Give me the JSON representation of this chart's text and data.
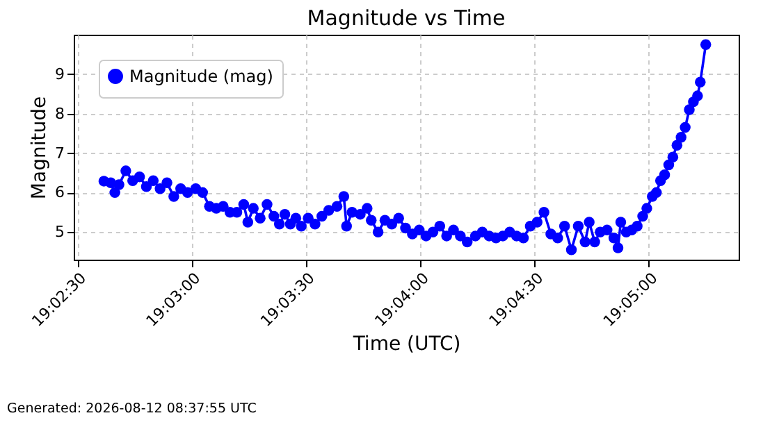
{
  "chart_data": {
    "type": "line",
    "title": "Magnitude vs Time",
    "xlabel": "Time (UTC)",
    "ylabel": "Magnitude",
    "annotations": [
      "Generated: 2026-08-12 08:37:55 UTC"
    ],
    "x": [
      19.0436,
      19.0441,
      19.0444,
      19.0447,
      19.0452,
      19.0457,
      19.0462,
      19.0467,
      19.0472,
      19.0477,
      19.0482,
      19.0487,
      19.0492,
      19.0497,
      19.0503,
      19.0508,
      19.0513,
      19.0518,
      19.0523,
      19.0528,
      19.0533,
      19.0538,
      19.0541,
      19.0545,
      19.055,
      19.0555,
      19.056,
      19.0564,
      19.0568,
      19.0572,
      19.0576,
      19.058,
      19.0585,
      19.059,
      19.0595,
      19.06,
      19.0606,
      19.0611,
      19.0613,
      19.0617,
      19.0623,
      19.0628,
      19.0631,
      19.0636,
      19.0641,
      19.0646,
      19.0651,
      19.0656,
      19.0661,
      19.0666,
      19.0671,
      19.0676,
      19.0681,
      19.0686,
      19.0691,
      19.0696,
      19.0701,
      19.0707,
      19.0712,
      19.0717,
      19.0722,
      19.0727,
      19.0732,
      19.0737,
      19.0742,
      19.0747,
      19.0752,
      19.0757,
      19.0762,
      19.0767,
      19.0772,
      19.0777,
      19.0782,
      19.0787,
      19.079,
      19.0794,
      19.0798,
      19.0803,
      19.0808,
      19.0811,
      19.0813,
      19.0817,
      19.0821,
      19.0825,
      19.0829,
      19.0832,
      19.0836,
      19.0839,
      19.0842,
      19.0845,
      19.0848,
      19.0851,
      19.0854,
      19.0857,
      19.086,
      19.0863,
      19.0866,
      19.0869,
      19.0871,
      19.0875
    ],
    "series": [
      {
        "name": "Magnitude (mag)",
        "color": "#0000ff",
        "values": [
          6.29,
          6.25,
          6.0,
          6.2,
          6.55,
          6.3,
          6.4,
          6.15,
          6.3,
          6.1,
          6.25,
          5.9,
          6.1,
          6.0,
          6.1,
          6.0,
          5.65,
          5.6,
          5.65,
          5.5,
          5.5,
          5.7,
          5.25,
          5.6,
          5.35,
          5.7,
          5.4,
          5.2,
          5.45,
          5.2,
          5.35,
          5.15,
          5.35,
          5.2,
          5.4,
          5.55,
          5.65,
          5.9,
          5.15,
          5.5,
          5.45,
          5.6,
          5.3,
          5.0,
          5.3,
          5.2,
          5.35,
          5.1,
          4.95,
          5.05,
          4.9,
          5.0,
          5.15,
          4.9,
          5.05,
          4.9,
          4.75,
          4.9,
          5.0,
          4.9,
          4.85,
          4.9,
          5.0,
          4.9,
          4.85,
          5.15,
          5.25,
          5.5,
          4.95,
          4.85,
          5.15,
          4.55,
          5.15,
          4.75,
          5.25,
          4.75,
          5.0,
          5.05,
          4.85,
          4.6,
          5.25,
          5.0,
          5.05,
          5.15,
          5.4,
          5.6,
          5.9,
          6.0,
          6.3,
          6.45,
          6.7,
          6.9,
          7.2,
          7.4,
          7.65,
          8.1,
          8.3,
          8.45,
          8.8,
          9.75
        ]
      }
    ],
    "xlim": [
      19.0414,
      19.0899
    ],
    "xticks": [
      {
        "value": 19.041667,
        "label": "19:02:30"
      },
      {
        "value": 19.05,
        "label": "19:03:00"
      },
      {
        "value": 19.058333,
        "label": "19:03:30"
      },
      {
        "value": 19.066667,
        "label": "19:04:00"
      },
      {
        "value": 19.075,
        "label": "19:04:30"
      },
      {
        "value": 19.083333,
        "label": "19:05:00"
      }
    ],
    "ylim": [
      4.3,
      10.0
    ],
    "yticks": [
      5,
      6,
      7,
      8,
      9
    ],
    "grid": true,
    "legend": "top left",
    "marker": "circle",
    "line_style": "solid"
  }
}
